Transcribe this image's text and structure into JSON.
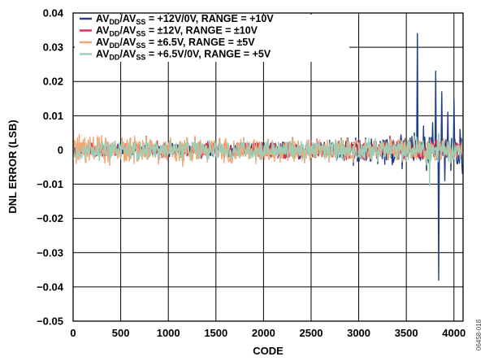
{
  "chart_data": {
    "type": "line",
    "xlabel": "CODE",
    "ylabel": "DNL ERROR (LSB)",
    "xlim": [
      0,
      4096
    ],
    "ylim": [
      -0.05,
      0.04
    ],
    "xticks": [
      "0",
      "500",
      "1000",
      "1500",
      "2000",
      "2500",
      "3000",
      "3500",
      "4000"
    ],
    "yticks": [
      "0.04",
      "0.03",
      "0.02",
      "0.01",
      "0",
      "−0.01",
      "−0.02",
      "−0.03",
      "−0.04",
      "−0.05"
    ],
    "grid": true,
    "legend_position": "top-left",
    "figure_id": "06458-018",
    "series": [
      {
        "name": "AVDD/AVSS = +12V/0V, RANGE = +10V",
        "legend": {
          "pre": "AV",
          "sub1": "DD",
          "mid": "/AV",
          "sub2": "SS",
          "post": " = +12V/0V, RANGE = +10V"
        },
        "color": "#1f3f86",
        "x": [
          0,
          128,
          256,
          384,
          512,
          640,
          768,
          896,
          1024,
          1152,
          1280,
          1408,
          1536,
          1664,
          1792,
          1920,
          2048,
          2176,
          2304,
          2432,
          2560,
          2688,
          2816,
          2944,
          3072,
          3200,
          3328,
          3456,
          3584,
          3616,
          3648,
          3680,
          3712,
          3776,
          3808,
          3840,
          3872,
          3904,
          3936,
          3968,
          4000,
          4032,
          4064,
          4090
        ],
        "values": [
          0.0015,
          -0.002,
          0.002,
          -0.0018,
          0.0022,
          -0.002,
          0.0015,
          -0.0025,
          0.002,
          -0.0022,
          0.0018,
          -0.002,
          0.0025,
          -0.0021,
          0.002,
          -0.0028,
          0.0022,
          -0.0024,
          0.0026,
          -0.0025,
          0.0028,
          -0.003,
          0.0032,
          -0.0045,
          0.0035,
          -0.004,
          0.004,
          -0.0055,
          0.005,
          0.034,
          -0.003,
          0.007,
          -0.006,
          0.008,
          0.023,
          -0.038,
          0.017,
          -0.009,
          0.011,
          -0.006,
          0.015,
          -0.004,
          0.006,
          -0.007
        ]
      },
      {
        "name": "AVDD/AVSS = ±12V, RANGE = ±10V",
        "legend": {
          "pre": "AV",
          "sub1": "DD",
          "mid": "/AV",
          "sub2": "SS",
          "post": " = ±12V, RANGE = ±10V"
        },
        "color": "#d4325a",
        "x": [
          0,
          128,
          256,
          384,
          512,
          640,
          768,
          896,
          1024,
          1152,
          1280,
          1408,
          1536,
          1664,
          1792,
          1920,
          2048,
          2176,
          2304,
          2432,
          2560,
          2688,
          2816,
          2944,
          3072,
          3200,
          3328,
          3456,
          3584,
          3712,
          3840,
          3968,
          4090
        ],
        "values": [
          0.003,
          -0.002,
          0.0035,
          -0.0022,
          0.0032,
          -0.002,
          0.004,
          -0.0025,
          0.0028,
          -0.002,
          0.0038,
          -0.0024,
          0.003,
          -0.002,
          0.0034,
          -0.0022,
          0.003,
          -0.0026,
          0.0036,
          -0.0023,
          0.0032,
          -0.0025,
          0.0035,
          -0.0028,
          0.003,
          -0.0024,
          0.0038,
          -0.003,
          0.0036,
          -0.003,
          0.0045,
          -0.0025,
          0.003
        ]
      },
      {
        "name": "AVDD/AVSS = ±6.5V, RANGE = ±5V",
        "legend": {
          "pre": "AV",
          "sub1": "DD",
          "mid": "/AV",
          "sub2": "SS",
          "post": " = ±6.5V, RANGE = ±5V"
        },
        "color": "#f4a572",
        "x": [
          0,
          32,
          64,
          128,
          256,
          384,
          512,
          640,
          768,
          896,
          1024,
          1152,
          1280,
          1408,
          1536,
          1664,
          1792,
          1920,
          2048,
          2176,
          2304,
          2432,
          2560,
          2688,
          2816,
          2944,
          3072,
          3200,
          3328,
          3456,
          3584,
          3712,
          3840,
          3968,
          4090
        ],
        "values": [
          0.009,
          -0.004,
          0.0045,
          -0.0035,
          0.004,
          -0.0045,
          0.0035,
          -0.004,
          0.0038,
          -0.0042,
          0.0036,
          -0.0048,
          0.004,
          -0.0035,
          0.0034,
          -0.0038,
          0.0036,
          -0.004,
          0.0032,
          -0.0036,
          0.0034,
          -0.0038,
          0.003,
          -0.0035,
          0.0032,
          -0.0036,
          0.003,
          -0.0034,
          0.0032,
          -0.0035,
          0.003,
          -0.0032,
          0.0035,
          -0.003,
          0.002
        ]
      },
      {
        "name": "AVDD/AVSS = +6.5V/0V, RANGE = +5V",
        "legend": {
          "pre": "AV",
          "sub1": "DD",
          "mid": "/AV",
          "sub2": "SS",
          "post": " = +6.5V/0V, RANGE = +5V"
        },
        "color": "#9ccfb5",
        "x": [
          0,
          128,
          256,
          384,
          512,
          640,
          768,
          896,
          1024,
          1152,
          1280,
          1408,
          1536,
          1664,
          1792,
          1920,
          2048,
          2176,
          2304,
          2432,
          2560,
          2688,
          2816,
          2944,
          3072,
          3200,
          3328,
          3456,
          3584,
          3712,
          3744,
          3840,
          3968,
          4090
        ],
        "values": [
          0.0025,
          -0.0025,
          0.0028,
          -0.003,
          0.0026,
          -0.0028,
          0.003,
          -0.0026,
          0.0028,
          -0.003,
          0.0027,
          -0.0029,
          0.0026,
          -0.0028,
          0.003,
          -0.0027,
          0.0028,
          -0.0026,
          0.0029,
          -0.003,
          0.0027,
          -0.0028,
          0.0029,
          -0.0027,
          0.003,
          -0.0032,
          0.0031,
          -0.003,
          0.004,
          -0.0045,
          -0.0105,
          0.005,
          -0.0035,
          0.003
        ]
      }
    ]
  }
}
